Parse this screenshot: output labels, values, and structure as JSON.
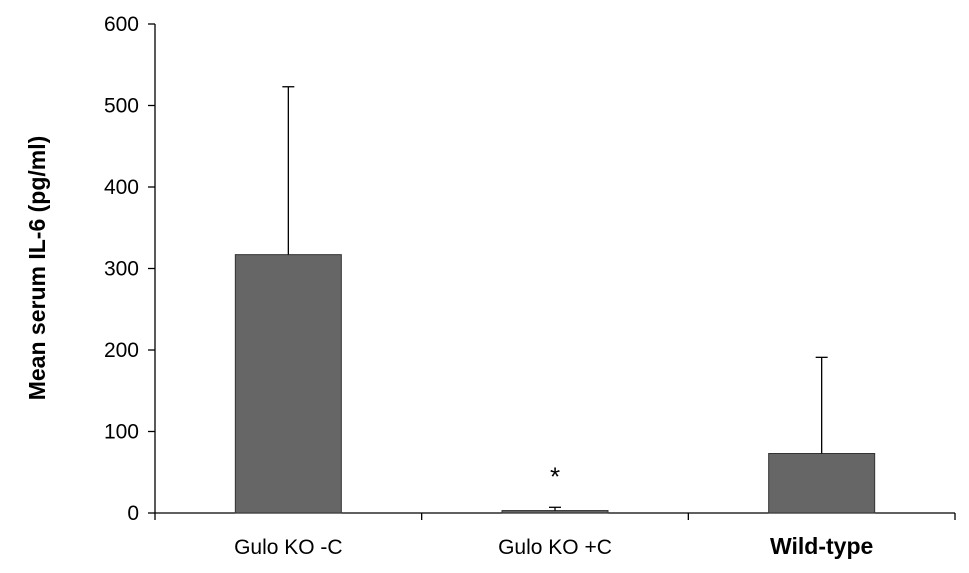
{
  "chart_data": {
    "type": "bar",
    "categories": [
      "Gulo KO -C",
      "Gulo KO +C",
      "Wild-type"
    ],
    "category_bold": [
      false,
      false,
      true
    ],
    "values": [
      317,
      3,
      73
    ],
    "error_upper": [
      523,
      7,
      191
    ],
    "ylabel": "Mean serum IL-6 (pg/ml)",
    "ylim": [
      0,
      600
    ],
    "yticks": [
      0,
      100,
      200,
      300,
      400,
      500,
      600
    ],
    "bar_color": "#666666",
    "annotations": [
      {
        "category_index": 1,
        "text": "*"
      }
    ],
    "grid": false,
    "legend": "none"
  }
}
